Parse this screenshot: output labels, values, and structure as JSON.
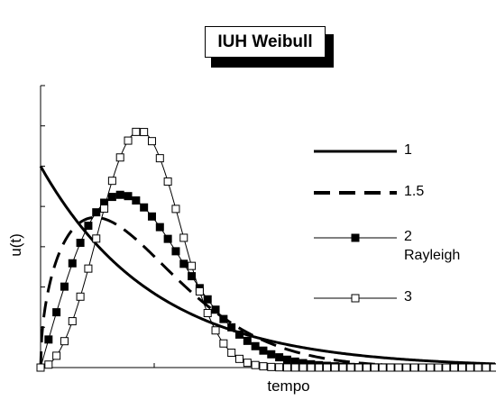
{
  "chart_data": {
    "type": "line",
    "title": "IUH Weibull",
    "xlabel": "tempo",
    "ylabel": "u(t)",
    "xlim": [
      0,
      4
    ],
    "ylim": [
      0,
      1.4
    ],
    "grid": false,
    "legend_position": "right",
    "legend": [
      {
        "label": "1",
        "sublabel": ""
      },
      {
        "label": "1.5",
        "sublabel": ""
      },
      {
        "label": "2",
        "sublabel": "Rayleigh"
      },
      {
        "label": "3",
        "sublabel": ""
      }
    ],
    "series": [
      {
        "name": "1",
        "shape_k": 1,
        "style": "solid-thick",
        "marker": "none"
      },
      {
        "name": "1.5",
        "shape_k": 1.5,
        "style": "dashed-thick",
        "marker": "none"
      },
      {
        "name": "2",
        "shape_k": 2,
        "style": "solid-thin",
        "marker": "filled-square"
      },
      {
        "name": "3",
        "shape_k": 3,
        "style": "solid-thin",
        "marker": "open-square"
      }
    ]
  }
}
